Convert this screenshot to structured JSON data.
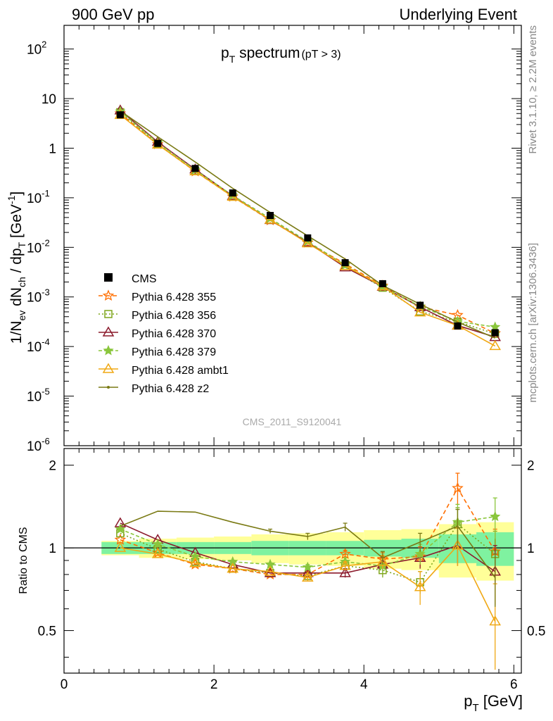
{
  "header": {
    "left": "900 GeV pp",
    "right": "Underlying Event"
  },
  "side_labels": {
    "top": "Rivet 3.1.10, ≥ 2.2M events",
    "bottom": "mcplots.cern.ch [arXiv:1306.3436]"
  },
  "chart_data": {
    "type": "scatter",
    "title": "p_T spectrum",
    "title_main": "p",
    "title_sub": "T",
    "title_rest": " spectrum",
    "title_cut": "(pT >  3)",
    "watermark": "CMS_2011_S9120041",
    "xlabel_main": "p",
    "xlabel_sub": "T",
    "xlabel_unit": " [GeV]",
    "ylabel_parts": [
      "1/N",
      "ev",
      " dN",
      "ch",
      " / dp",
      "T",
      " [GeV",
      "-1",
      "]"
    ],
    "ratio_ylabel": "Ratio to CMS",
    "xlim": [
      0,
      6.1
    ],
    "ylim": [
      1e-06,
      300
    ],
    "yscale": "log",
    "ratio_ylim": [
      0.35,
      2.3
    ],
    "ratio_scale": "log",
    "x_ticks": [
      "0",
      "2",
      "4",
      "6"
    ],
    "y_ticks": [
      {
        "base": "10",
        "exp": "-6"
      },
      {
        "base": "10",
        "exp": "-5"
      },
      {
        "base": "10",
        "exp": "-4"
      },
      {
        "base": "10",
        "exp": "-3"
      },
      {
        "base": "10",
        "exp": "-2"
      },
      {
        "base": "10",
        "exp": "-1"
      },
      {
        "base": "1",
        "exp": ""
      },
      {
        "base": "10",
        "exp": ""
      },
      {
        "base": "10",
        "exp": "2"
      }
    ],
    "ratio_ticks": [
      "0.5",
      "1",
      "2"
    ],
    "x": [
      0.75,
      1.25,
      1.75,
      2.25,
      2.75,
      3.25,
      3.75,
      4.25,
      4.75,
      5.25,
      5.75
    ],
    "bin_edges": [
      0.5,
      1.0,
      1.5,
      2.0,
      2.5,
      3.0,
      3.5,
      4.0,
      4.5,
      5.0,
      5.5,
      6.0
    ],
    "data": {
      "name": "CMS",
      "values": [
        4.7,
        1.25,
        0.39,
        0.125,
        0.044,
        0.0155,
        0.0049,
        0.00185,
        0.00068,
        0.00026,
        0.00019
      ],
      "band_inner": [
        0.05,
        0.05,
        0.05,
        0.05,
        0.06,
        0.06,
        0.06,
        0.07,
        0.08,
        0.12,
        0.14
      ],
      "band_outer": [
        0.06,
        0.08,
        0.09,
        0.1,
        0.12,
        0.13,
        0.14,
        0.16,
        0.17,
        0.22,
        0.24
      ]
    },
    "legend_position": "left",
    "series": [
      {
        "name": "Pythia 6.428 355",
        "color": "#ff6e00",
        "dash": "6,4",
        "marker": "star-open",
        "ratio": [
          1.07,
          0.96,
          0.87,
          0.84,
          0.8,
          0.8,
          0.95,
          0.91,
          0.93,
          1.65,
          0.97
        ],
        "ratio_err": [
          0.01,
          0.01,
          0.01,
          0.01,
          0.01,
          0.02,
          0.03,
          0.05,
          0.08,
          0.22,
          0.2
        ]
      },
      {
        "name": "Pythia 6.428 356",
        "color": "#7fa51c",
        "dash": "2,3",
        "marker": "square-open",
        "ratio": [
          1.13,
          0.99,
          0.89,
          0.84,
          0.81,
          0.79,
          0.86,
          0.83,
          0.75,
          1.22,
          0.95
        ],
        "ratio_err": [
          0.01,
          0.01,
          0.01,
          0.01,
          0.01,
          0.02,
          0.03,
          0.05,
          0.07,
          0.18,
          0.2
        ]
      },
      {
        "name": "Pythia 6.428 370",
        "color": "#8b1a2c",
        "dash": "",
        "marker": "triangle-open",
        "ratio": [
          1.23,
          1.07,
          0.96,
          0.87,
          0.81,
          0.81,
          0.81,
          0.87,
          0.92,
          1.02,
          0.82
        ],
        "ratio_err": [
          0.01,
          0.01,
          0.01,
          0.01,
          0.01,
          0.02,
          0.03,
          0.05,
          0.08,
          0.16,
          0.2
        ]
      },
      {
        "name": "Pythia 6.428 379",
        "color": "#8ac63c",
        "dash": "5,3",
        "marker": "star-filled",
        "ratio": [
          1.17,
          1.03,
          0.93,
          0.89,
          0.87,
          0.85,
          0.89,
          0.86,
          0.95,
          1.24,
          1.3
        ],
        "ratio_err": [
          0.01,
          0.01,
          0.01,
          0.01,
          0.01,
          0.02,
          0.03,
          0.05,
          0.08,
          0.2,
          0.22
        ]
      },
      {
        "name": "Pythia 6.428 ambt1",
        "color": "#f0a814",
        "dash": "",
        "marker": "triangle-open",
        "ratio": [
          1.0,
          0.95,
          0.88,
          0.84,
          0.82,
          0.78,
          0.86,
          0.89,
          0.72,
          1.02,
          0.54
        ],
        "ratio_err": [
          0.01,
          0.01,
          0.01,
          0.01,
          0.01,
          0.02,
          0.03,
          0.05,
          0.1,
          0.16,
          0.2
        ]
      },
      {
        "name": "Pythia 6.428 z2",
        "color": "#7a7a14",
        "dash": "",
        "marker": "dot",
        "ratio": [
          1.2,
          1.36,
          1.35,
          1.24,
          1.15,
          1.1,
          1.19,
          0.92,
          1.05,
          1.2,
          0.78
        ],
        "ratio_err": [
          0.01,
          0.01,
          0.01,
          0.01,
          0.02,
          0.03,
          0.04,
          0.05,
          0.08,
          0.18,
          0.17
        ]
      }
    ]
  }
}
